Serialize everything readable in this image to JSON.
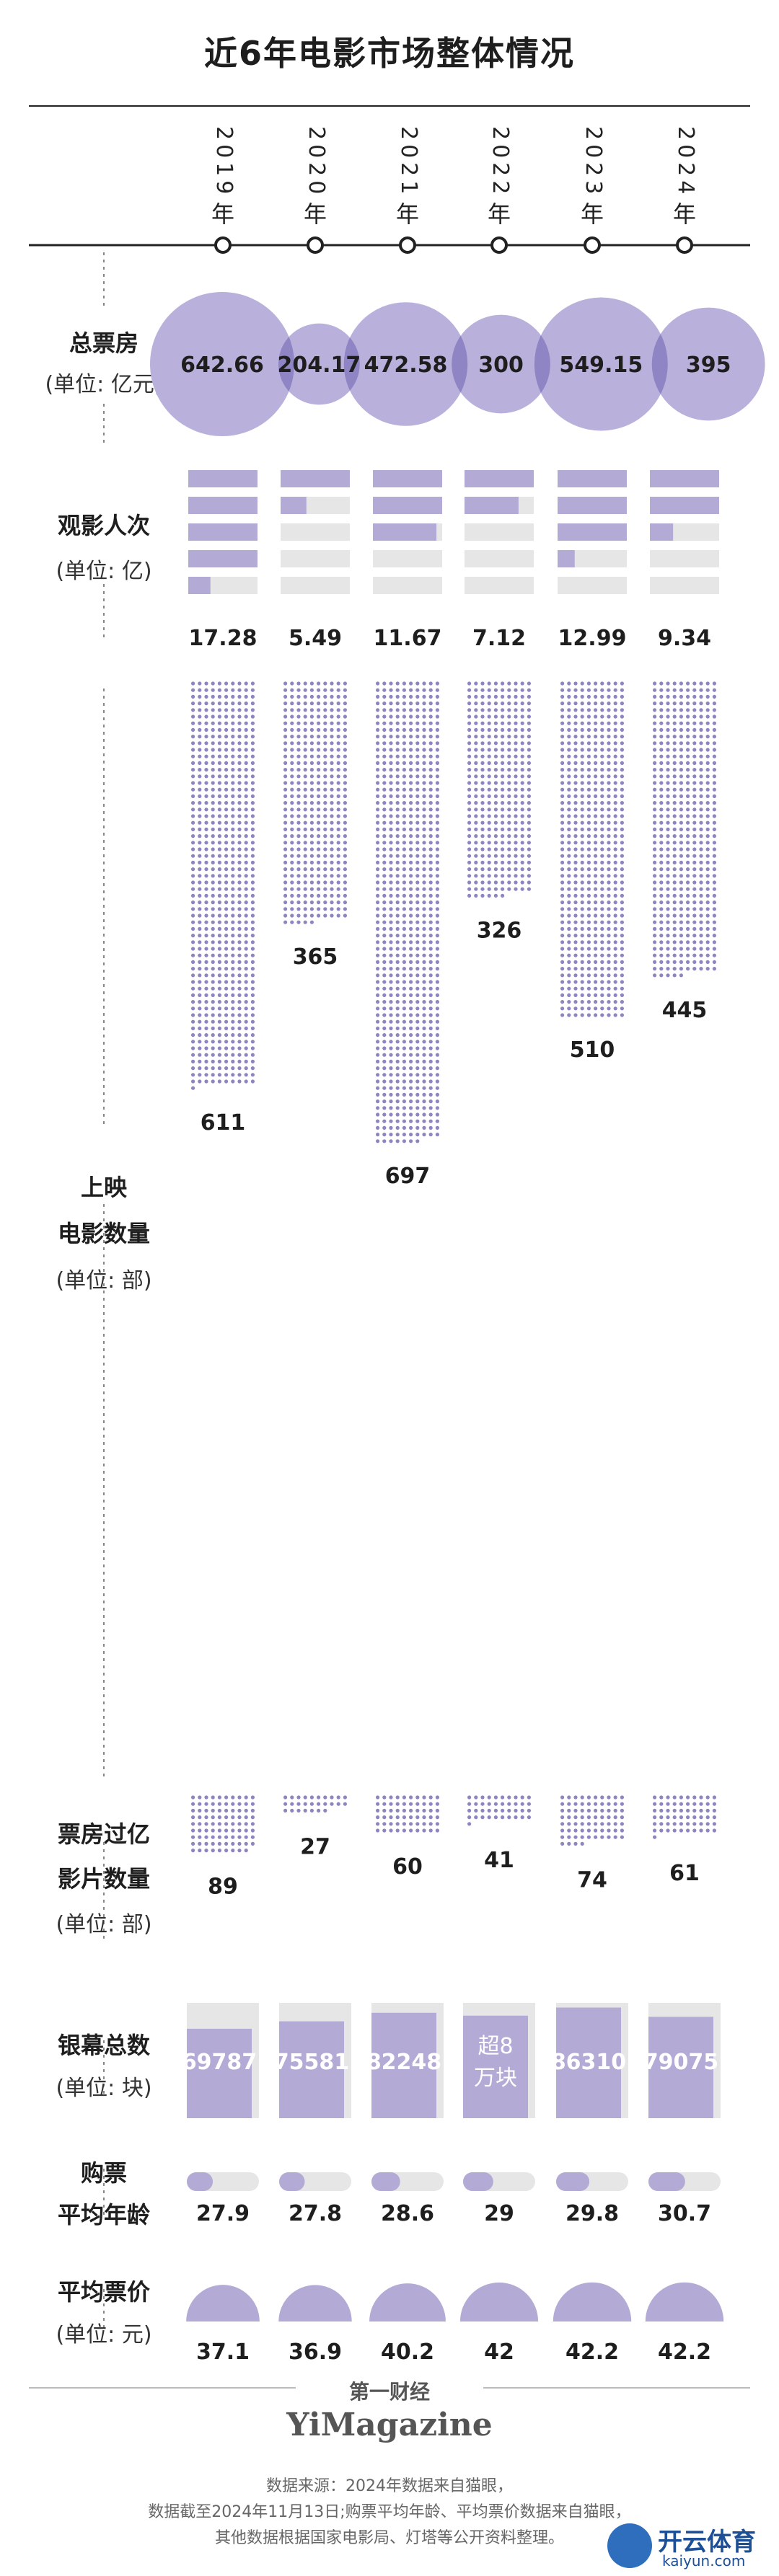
{
  "title": "近6年电影市场整体情况",
  "years": [
    "2019年",
    "2020年",
    "2021年",
    "2022年",
    "2023年",
    "2024年"
  ],
  "labels": {
    "box_office": [
      "总票房",
      "(单位: 亿元)"
    ],
    "admissions": [
      "观影人次",
      "(单位: 亿)"
    ],
    "releases": [
      "上映",
      "电影数量",
      "(单位: 部)"
    ],
    "billion_films": [
      "票房过亿",
      "影片数量",
      "(单位: 部)"
    ],
    "screens": [
      "银幕总数",
      "(单位: 块)"
    ],
    "buyer_age": [
      "购票",
      "平均年龄"
    ],
    "ticket_price": [
      "平均票价",
      "(单位: 元)"
    ]
  },
  "screens_2022_text": [
    "超8",
    "万块"
  ],
  "brand": {
    "cn": "第一财经",
    "en": "YiMagazine"
  },
  "footer": [
    "数据来源：2024年数据来自猫眼，",
    "数据截至2024年11月13日;购票平均年龄、平均票价数据来自猫眼，",
    "其他数据根据国家电影局、灯塔等公开资料整理。"
  ],
  "watermark": {
    "cn": "开云体育",
    "en": "kaiyun.com"
  },
  "colors": {
    "accent": "#b3aad6",
    "accent_dark": "#8e84c0",
    "bubble": "#b9b1dc",
    "bubble_overlap": "#8f85c4",
    "track": "#e6e6e6",
    "dot_light": "#c3bce0",
    "line": "#222222"
  },
  "chart_data": [
    {
      "type": "bubble",
      "name": "总票房",
      "unit": "亿元",
      "categories": [
        "2019年",
        "2020年",
        "2021年",
        "2022年",
        "2023年",
        "2024年"
      ],
      "values": [
        642.66,
        204.17,
        472.58,
        300,
        549.15,
        395
      ],
      "value_labels": [
        "642.66",
        "204.17",
        "472.58",
        "300",
        "549.15",
        "395"
      ]
    },
    {
      "type": "bar",
      "name": "观影人次",
      "unit": "亿",
      "categories": [
        "2019年",
        "2020年",
        "2021年",
        "2022年",
        "2023年",
        "2024年"
      ],
      "values": [
        17.28,
        5.49,
        11.67,
        7.12,
        12.99,
        9.34
      ],
      "value_labels": [
        "17.28",
        "5.49",
        "11.67",
        "7.12",
        "12.99",
        "9.34"
      ]
    },
    {
      "type": "dot-matrix",
      "name": "上映电影数量",
      "unit": "部",
      "categories": [
        "2019年",
        "2020年",
        "2021年",
        "2022年",
        "2023年",
        "2024年"
      ],
      "values": [
        611,
        365,
        697,
        326,
        510,
        445
      ],
      "value_labels": [
        "611",
        "365",
        "697",
        "326",
        "510",
        "445"
      ]
    },
    {
      "type": "dot-matrix",
      "name": "票房过亿影片数量",
      "unit": "部",
      "categories": [
        "2019年",
        "2020年",
        "2021年",
        "2022年",
        "2023年",
        "2024年"
      ],
      "values": [
        89,
        27,
        60,
        41,
        74,
        61
      ],
      "value_labels": [
        "89",
        "27",
        "60",
        "41",
        "74",
        "61"
      ]
    },
    {
      "type": "bar",
      "name": "银幕总数",
      "unit": "块",
      "categories": [
        "2019年",
        "2020年",
        "2021年",
        "2022年",
        "2023年",
        "2024年"
      ],
      "values": [
        69787,
        75581,
        82248,
        80000,
        86310,
        79075
      ],
      "value_labels": [
        "69787",
        "75581",
        "82248",
        "",
        "86310",
        "79075"
      ]
    },
    {
      "type": "bar",
      "name": "购票平均年龄",
      "categories": [
        "2019年",
        "2020年",
        "2021年",
        "2022年",
        "2023年",
        "2024年"
      ],
      "values": [
        27.9,
        27.8,
        28.6,
        29,
        29.8,
        30.7
      ],
      "value_labels": [
        "27.9",
        "27.8",
        "28.6",
        "29",
        "29.8",
        "30.7"
      ]
    },
    {
      "type": "area",
      "name": "平均票价",
      "unit": "元",
      "categories": [
        "2019年",
        "2020年",
        "2021年",
        "2022年",
        "2023年",
        "2024年"
      ],
      "values": [
        37.1,
        36.9,
        40.2,
        42,
        42.2,
        42.2
      ],
      "value_labels": [
        "37.1",
        "36.9",
        "40.2",
        "42",
        "42.2",
        "42.2"
      ]
    }
  ]
}
